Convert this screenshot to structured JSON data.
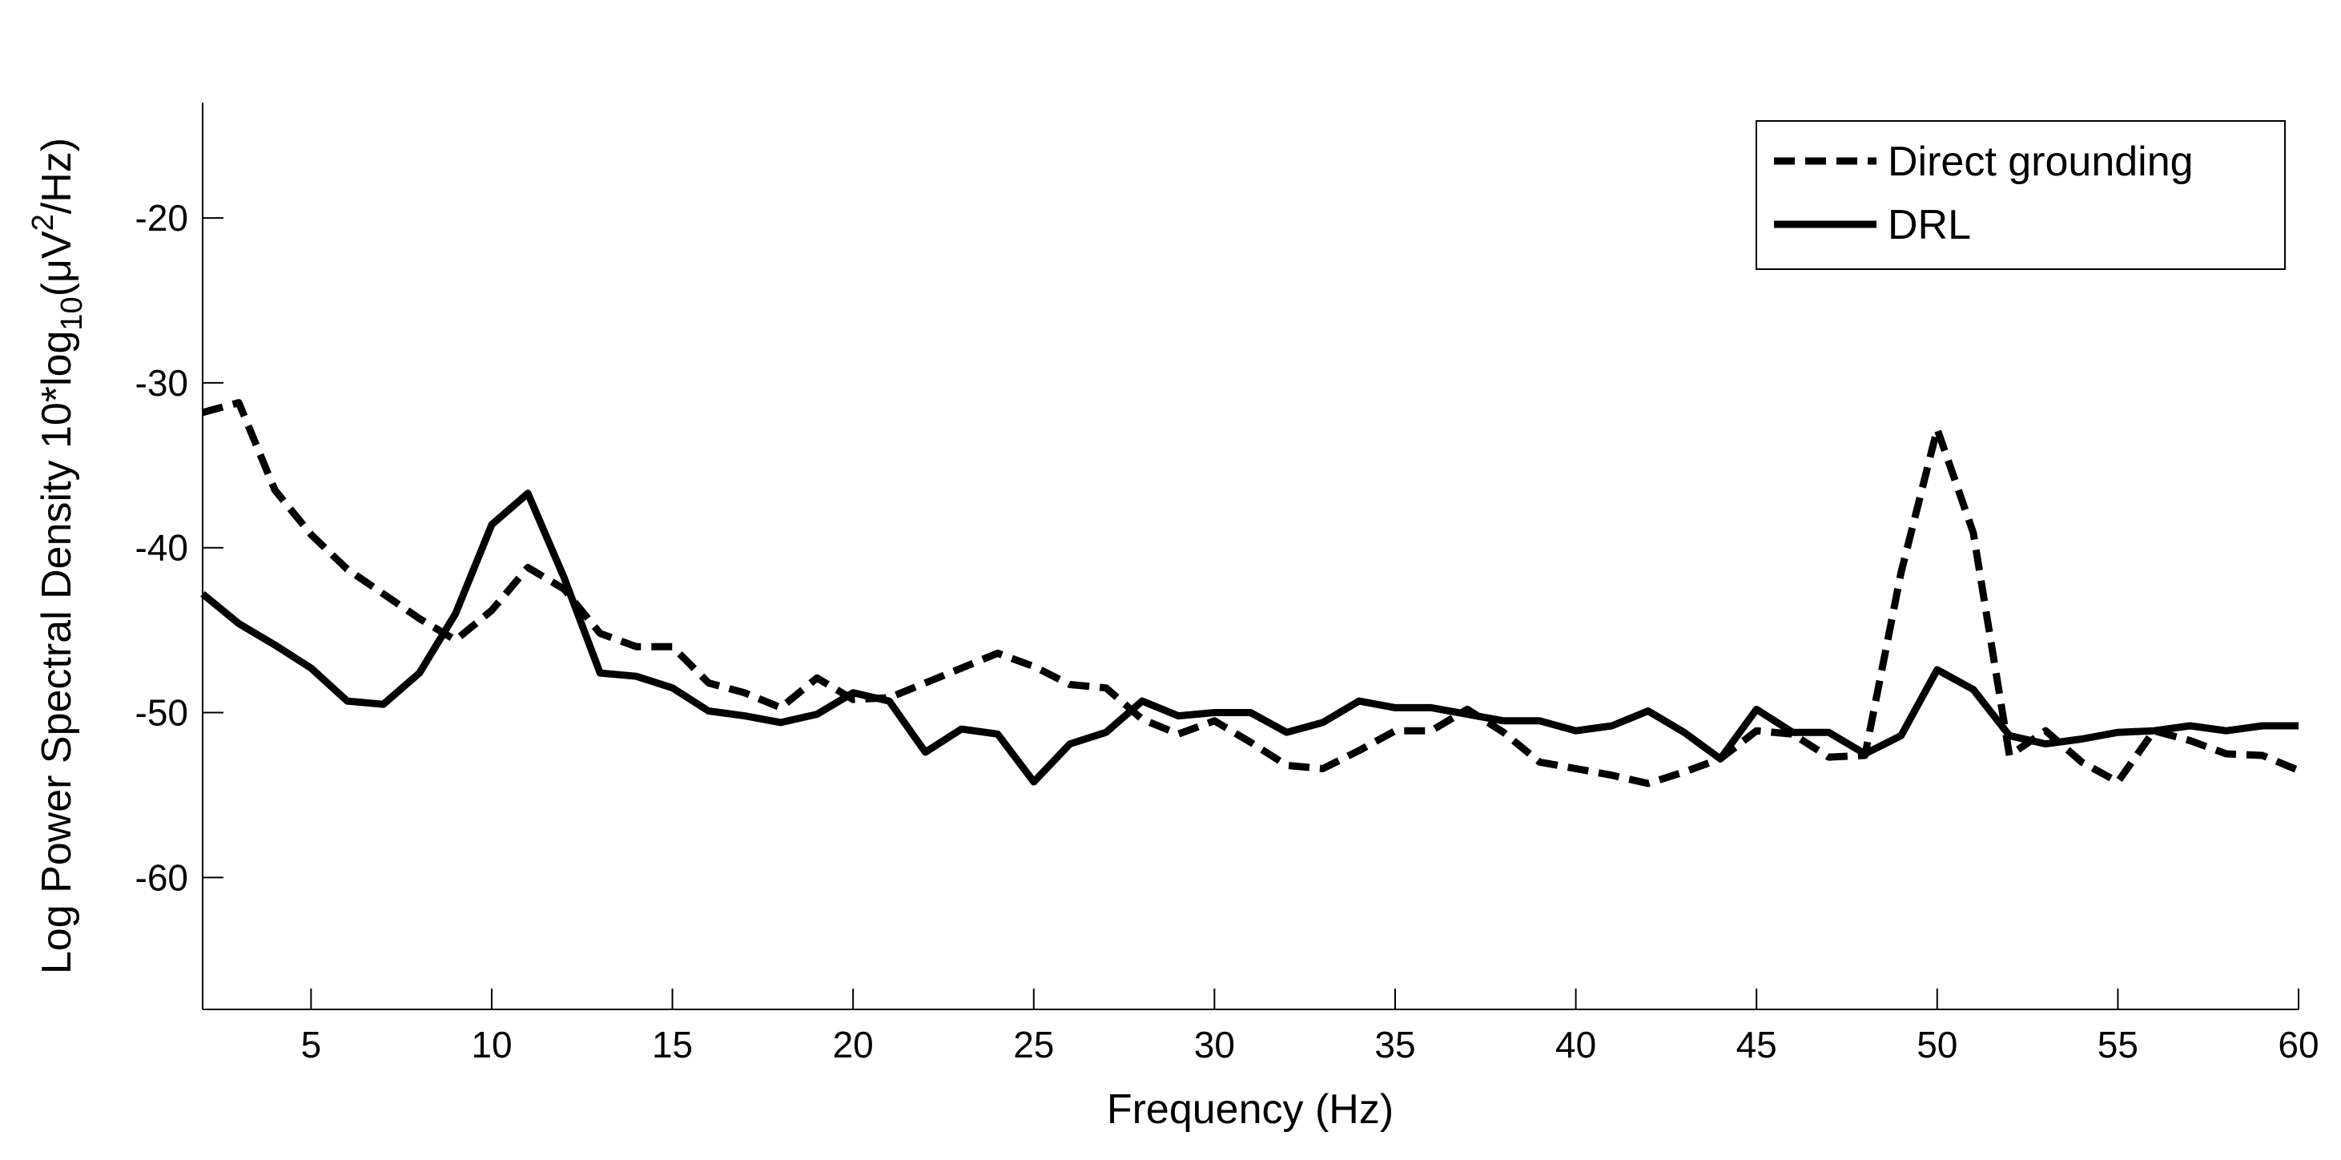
{
  "chart_data": {
    "type": "line",
    "xlabel": "Frequency (Hz)",
    "ylabel": {
      "prefix": "Log Power Spectral Density 10*log",
      "sub": "10",
      "mid": "(μV",
      "sup": "2",
      "suffix": "/Hz)"
    },
    "xlim": [
      2,
      60
    ],
    "ylim": [
      -68,
      -13
    ],
    "xticks": [
      5,
      10,
      15,
      20,
      25,
      30,
      35,
      40,
      45,
      50,
      55,
      60
    ],
    "yticks": [
      -20,
      -30,
      -40,
      -50,
      -60
    ],
    "grid": false,
    "legend_position": "top-right",
    "x": [
      2,
      3,
      4,
      5,
      6,
      7,
      8,
      9,
      10,
      11,
      12,
      13,
      14,
      15,
      16,
      17,
      18,
      19,
      20,
      21,
      22,
      23,
      24,
      25,
      26,
      27,
      28,
      29,
      30,
      31,
      32,
      33,
      34,
      35,
      36,
      37,
      38,
      39,
      40,
      41,
      42,
      43,
      44,
      45,
      46,
      47,
      48,
      49,
      50,
      51,
      52,
      53,
      54,
      55,
      56,
      57,
      58,
      59,
      60
    ],
    "series": [
      {
        "name": "Direct grounding",
        "style": "dashed",
        "color": "#000000",
        "values": [
          -31.8,
          -31.2,
          -36.5,
          -39.2,
          -41.3,
          -42.8,
          -44.3,
          -45.6,
          -43.8,
          -41.2,
          -42.5,
          -45.2,
          -46.0,
          -46.0,
          -48.2,
          -48.8,
          -49.7,
          -47.9,
          -49.2,
          -49.1,
          -48.2,
          -47.3,
          -46.4,
          -47.2,
          -48.3,
          -48.5,
          -50.4,
          -51.3,
          -50.5,
          -51.8,
          -53.2,
          -53.4,
          -52.3,
          -51.1,
          -51.1,
          -49.8,
          -51.2,
          -53.0,
          -53.4,
          -53.8,
          -54.3,
          -53.6,
          -52.8,
          -51.1,
          -51.3,
          -52.7,
          -52.6,
          -41.5,
          -32.8,
          -39.1,
          -52.6,
          -51.1,
          -53.0,
          -54.2,
          -51.1,
          -51.7,
          -52.5,
          -52.6,
          -53.5
        ]
      },
      {
        "name": "DRL",
        "style": "solid",
        "color": "#000000",
        "values": [
          -42.8,
          -44.6,
          -45.9,
          -47.3,
          -49.3,
          -49.5,
          -47.6,
          -44.0,
          -38.6,
          -36.7,
          -41.8,
          -47.6,
          -47.8,
          -48.5,
          -49.9,
          -50.2,
          -50.6,
          -50.1,
          -48.8,
          -49.3,
          -52.4,
          -51.0,
          -51.3,
          -54.2,
          -51.9,
          -51.2,
          -49.3,
          -50.2,
          -50.0,
          -50.0,
          -51.2,
          -50.6,
          -49.3,
          -49.7,
          -49.7,
          -50.1,
          -50.5,
          -50.5,
          -51.1,
          -50.8,
          -49.9,
          -51.2,
          -52.8,
          -49.8,
          -51.2,
          -51.2,
          -52.5,
          -51.4,
          -47.4,
          -48.6,
          -51.4,
          -51.9,
          -51.6,
          -51.2,
          -51.1,
          -50.8,
          -51.1,
          -50.8,
          -50.8
        ]
      }
    ]
  }
}
